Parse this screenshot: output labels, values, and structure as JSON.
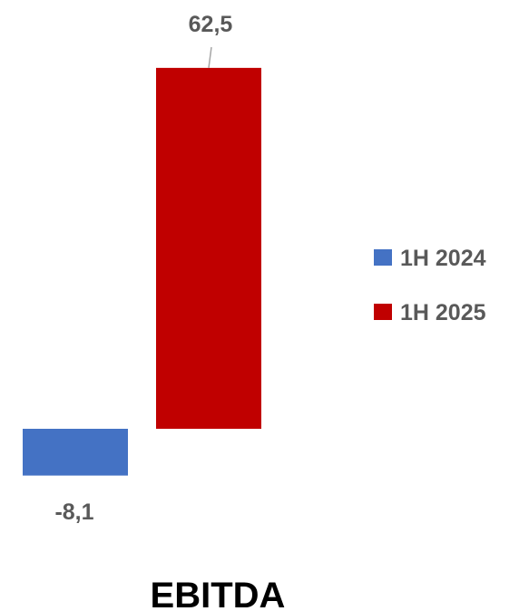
{
  "chart_data": {
    "type": "bar",
    "title": "EBITDA",
    "categories": [
      "EBITDA"
    ],
    "series": [
      {
        "name": "1H 2024",
        "values": [
          -8.1
        ],
        "label": "-8,1",
        "color": "#4472C4"
      },
      {
        "name": "1H 2025",
        "values": [
          62.5
        ],
        "label": "62,5",
        "color": "#C00000"
      }
    ],
    "legend_position": "right",
    "grid": false,
    "axes_visible": false
  }
}
